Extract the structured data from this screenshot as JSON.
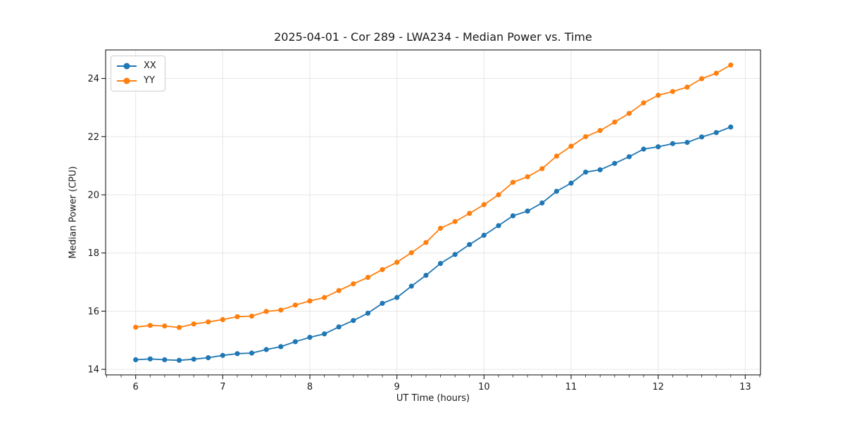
{
  "chart_data": {
    "type": "line",
    "title": "2025-04-01 - Cor 289 - LWA234 - Median Power vs. Time",
    "xlabel": "UT Time (hours)",
    "ylabel": "Median Power (CPU)",
    "xlim": [
      5.655,
      13.175
    ],
    "ylim": [
      13.81,
      24.98
    ],
    "xticks": [
      6,
      7,
      8,
      9,
      10,
      11,
      12,
      13
    ],
    "yticks": [
      14,
      16,
      18,
      20,
      22,
      24
    ],
    "minor_xtick_step": 0.1667,
    "grid": true,
    "grid_color": "#e6e6e6",
    "legend_position": "upper left",
    "x": [
      6.0,
      6.167,
      6.333,
      6.5,
      6.667,
      6.833,
      7.0,
      7.167,
      7.333,
      7.5,
      7.667,
      7.833,
      8.0,
      8.167,
      8.333,
      8.5,
      8.667,
      8.833,
      9.0,
      9.167,
      9.333,
      9.5,
      9.667,
      9.833,
      10.0,
      10.167,
      10.333,
      10.5,
      10.667,
      10.833,
      11.0,
      11.167,
      11.333,
      11.5,
      11.667,
      11.833,
      12.0,
      12.167,
      12.333,
      12.5,
      12.667,
      12.833
    ],
    "series": [
      {
        "name": "XX",
        "color": "#1f77b4",
        "values": [
          14.33,
          14.36,
          14.33,
          14.31,
          14.35,
          14.4,
          14.48,
          14.54,
          14.56,
          14.68,
          14.78,
          14.95,
          15.1,
          15.22,
          15.46,
          15.68,
          15.93,
          16.27,
          16.47,
          16.86,
          17.23,
          17.64,
          17.95,
          18.29,
          18.61,
          18.94,
          19.28,
          19.44,
          19.72,
          20.12,
          20.4,
          20.78,
          20.86,
          21.08,
          21.31,
          21.57,
          21.65,
          21.76,
          21.8,
          21.99,
          22.14,
          22.33
        ]
      },
      {
        "name": "YY",
        "color": "#ff7f0e",
        "values": [
          15.45,
          15.51,
          15.49,
          15.44,
          15.56,
          15.63,
          15.71,
          15.81,
          15.83,
          15.99,
          16.04,
          16.21,
          16.35,
          16.47,
          16.71,
          16.94,
          17.16,
          17.43,
          17.68,
          18.01,
          18.36,
          18.85,
          19.08,
          19.36,
          19.66,
          20.0,
          20.43,
          20.62,
          20.9,
          21.33,
          21.67,
          22.0,
          22.21,
          22.5,
          22.8,
          23.16,
          23.42,
          23.55,
          23.7,
          23.99,
          24.18,
          24.46
        ]
      }
    ]
  }
}
